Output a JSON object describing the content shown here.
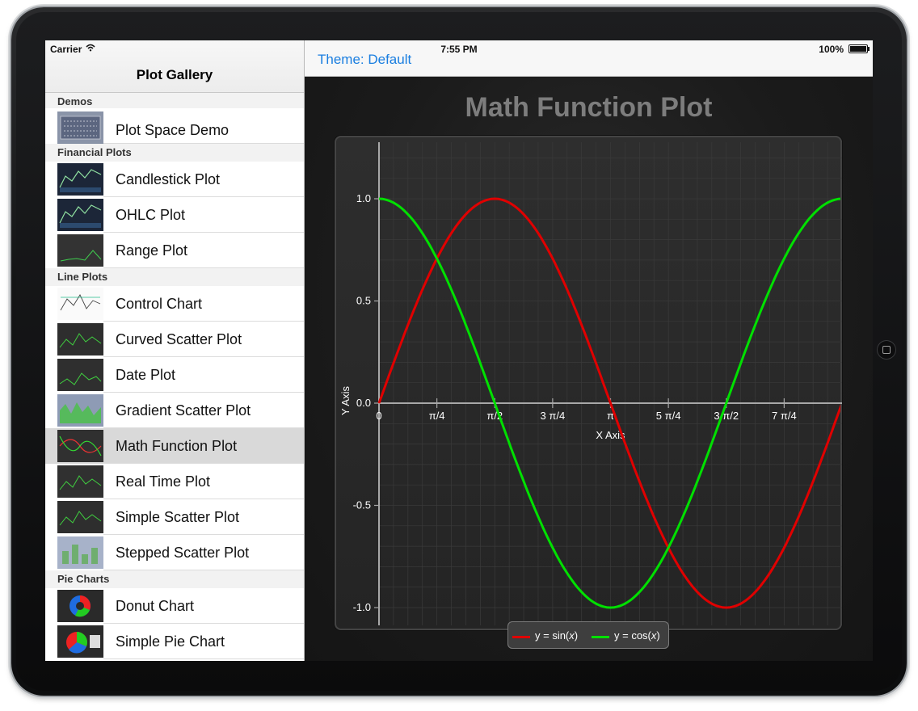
{
  "status_bar": {
    "carrier": "Carrier",
    "time": "7:55 PM",
    "battery": "100%"
  },
  "master": {
    "title": "Plot Gallery",
    "sections": [
      {
        "title": "Demos",
        "items": [
          {
            "label": "Plot Space Demo",
            "thumb": "demo"
          }
        ]
      },
      {
        "title": "Financial Plots",
        "items": [
          {
            "label": "Candlestick Plot",
            "thumb": "financial"
          },
          {
            "label": "OHLC Plot",
            "thumb": "financial"
          },
          {
            "label": "Range Plot",
            "thumb": "range"
          }
        ]
      },
      {
        "title": "Line Plots",
        "items": [
          {
            "label": "Control Chart",
            "thumb": "control"
          },
          {
            "label": "Curved Scatter Plot",
            "thumb": "scatter"
          },
          {
            "label": "Date Plot",
            "thumb": "date"
          },
          {
            "label": "Gradient Scatter Plot",
            "thumb": "gradient"
          },
          {
            "label": "Math Function Plot",
            "thumb": "math",
            "selected": true
          },
          {
            "label": "Real Time Plot",
            "thumb": "realtime"
          },
          {
            "label": "Simple Scatter Plot",
            "thumb": "scatter"
          },
          {
            "label": "Stepped Scatter Plot",
            "thumb": "stepped"
          }
        ]
      },
      {
        "title": "Pie Charts",
        "items": [
          {
            "label": "Donut Chart",
            "thumb": "donut"
          },
          {
            "label": "Simple Pie Chart",
            "thumb": "pie"
          }
        ]
      }
    ]
  },
  "detail": {
    "theme_button": "Theme: Default"
  },
  "chart_data": {
    "type": "line",
    "title": "Math Function Plot",
    "xlabel": "X Axis",
    "ylabel": "Y Axis",
    "xlim": [
      0,
      6.2832
    ],
    "ylim": [
      -1.0,
      1.0
    ],
    "grid": true,
    "x_ticks": [
      {
        "value": 0,
        "label": "0"
      },
      {
        "value": 0.7854,
        "label": "π/4"
      },
      {
        "value": 1.5708,
        "label": "π/2"
      },
      {
        "value": 2.3562,
        "label": "3 π/4"
      },
      {
        "value": 3.1416,
        "label": "π"
      },
      {
        "value": 3.927,
        "label": "5 π/4"
      },
      {
        "value": 4.7124,
        "label": "3 π/2"
      },
      {
        "value": 5.4978,
        "label": "7 π/4"
      }
    ],
    "y_ticks": [
      {
        "value": 1.0,
        "label": "1.0"
      },
      {
        "value": 0.5,
        "label": "0.5"
      },
      {
        "value": 0.0,
        "label": "0.0"
      },
      {
        "value": -0.5,
        "label": "-0.5"
      },
      {
        "value": -1.0,
        "label": "-1.0"
      }
    ],
    "series": [
      {
        "name": "sin",
        "legend_prefix": "y = sin(",
        "legend_var": "x",
        "legend_suffix": ")",
        "function": "sin",
        "color": "#e00000"
      },
      {
        "name": "cos",
        "legend_prefix": "y = cos(",
        "legend_var": "x",
        "legend_suffix": ")",
        "function": "cos",
        "color": "#00e000"
      }
    ],
    "legend_position": "bottom-center"
  }
}
